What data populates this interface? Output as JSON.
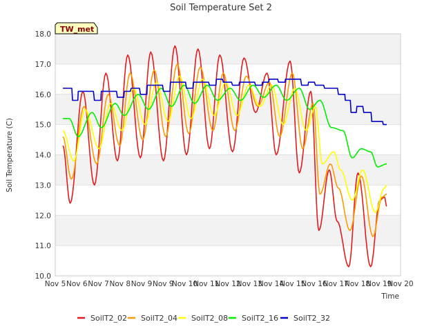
{
  "chart_data": {
    "type": "line",
    "title": "Soil Temperature Set 2",
    "xlabel": "Time",
    "ylabel": "Soil Temperature (C)",
    "badge": "TW_met",
    "x_tick_labels": [
      "Nov 5",
      "Nov 6",
      "Nov 7",
      "Nov 8",
      "Nov 9",
      "Nov 9",
      "Nov 10",
      "Nov 11",
      "Nov 12",
      "Nov 13",
      "Nov 14",
      "Nov 15",
      "Nov 16",
      "Nov 17",
      "Nov 18",
      "Nov 19",
      "Nov 20"
    ],
    "xlim": [
      5,
      20
    ],
    "ylim": [
      10,
      18
    ],
    "y_ticks": [
      10,
      11,
      12,
      13,
      14,
      15,
      16,
      17,
      18
    ],
    "y_tick_labels": [
      "10.0",
      "11.0",
      "12.0",
      "13.0",
      "14.0",
      "15.0",
      "16.0",
      "17.0",
      "18.0"
    ],
    "grid": true,
    "legend_position": "bottom",
    "series": [
      {
        "name": "SoilT2_02",
        "color": "#e31a1c",
        "x": [
          5.33,
          5.65,
          6.2,
          6.7,
          7.2,
          7.7,
          8.15,
          8.7,
          9.15,
          9.7,
          10.2,
          10.7,
          11.2,
          11.7,
          12.15,
          12.7,
          13.2,
          13.7,
          14.2,
          14.6,
          15.2,
          15.6,
          16.1,
          16.45,
          16.9,
          17.25,
          17.75,
          18.15,
          18.7,
          19.1,
          19.3,
          19.4
        ],
        "y": [
          14.3,
          12.4,
          16.1,
          13.0,
          16.7,
          13.8,
          17.3,
          13.9,
          17.4,
          13.8,
          17.6,
          14.0,
          17.5,
          14.2,
          17.3,
          14.1,
          17.2,
          15.4,
          16.7,
          14.0,
          17.1,
          13.4,
          16.1,
          11.5,
          13.5,
          11.8,
          10.3,
          13.4,
          10.3,
          12.5,
          12.6,
          12.3
        ]
      },
      {
        "name": "SoilT2_04",
        "color": "#ff9900",
        "x": [
          5.33,
          5.7,
          6.25,
          6.8,
          7.3,
          7.8,
          8.25,
          8.8,
          9.3,
          9.8,
          10.3,
          10.8,
          11.3,
          11.85,
          12.3,
          12.8,
          13.3,
          13.8,
          14.3,
          14.75,
          15.3,
          15.75,
          16.2,
          16.5,
          16.95,
          17.3,
          17.8,
          18.3,
          18.8,
          19.2,
          19.4
        ],
        "y": [
          14.6,
          13.2,
          15.6,
          13.7,
          16.0,
          14.3,
          16.7,
          14.5,
          16.8,
          14.6,
          17.0,
          14.7,
          16.9,
          14.8,
          16.7,
          14.8,
          16.6,
          15.6,
          16.4,
          14.6,
          16.7,
          14.2,
          15.7,
          12.7,
          13.7,
          12.9,
          11.5,
          13.3,
          11.3,
          12.6,
          12.7
        ]
      },
      {
        "name": "SoilT2_08",
        "color": "#ffff00",
        "x": [
          5.33,
          5.8,
          6.3,
          6.9,
          7.4,
          7.9,
          8.4,
          8.9,
          9.4,
          9.9,
          10.4,
          10.9,
          11.4,
          11.9,
          12.4,
          12.9,
          13.4,
          13.9,
          14.4,
          14.9,
          15.4,
          15.9,
          16.3,
          16.6,
          17.1,
          17.4,
          17.9,
          18.35,
          18.9,
          19.3,
          19.4
        ],
        "y": [
          14.8,
          13.8,
          15.5,
          14.2,
          15.7,
          14.8,
          16.2,
          15.0,
          16.4,
          15.1,
          16.6,
          15.2,
          16.5,
          15.3,
          16.4,
          15.3,
          16.3,
          15.6,
          16.3,
          15.0,
          16.2,
          14.8,
          15.6,
          13.7,
          14.1,
          13.5,
          12.5,
          13.5,
          12.1,
          12.9,
          13.0
        ]
      },
      {
        "name": "SoilT2_16",
        "color": "#00ee00",
        "x": [
          5.33,
          5.6,
          6.0,
          6.6,
          7.0,
          7.6,
          8.0,
          8.6,
          9.05,
          9.6,
          10.05,
          10.6,
          11.05,
          11.6,
          12.05,
          12.6,
          13.05,
          13.6,
          14.05,
          14.6,
          15.05,
          15.6,
          16.05,
          16.5,
          17.0,
          17.5,
          17.9,
          18.3,
          18.7,
          19.0,
          19.4
        ],
        "y": [
          15.2,
          15.2,
          14.6,
          15.4,
          14.9,
          15.7,
          15.3,
          16.0,
          15.5,
          16.2,
          15.6,
          16.3,
          15.7,
          16.3,
          15.8,
          16.2,
          15.8,
          16.3,
          15.9,
          16.3,
          15.8,
          16.2,
          15.5,
          15.8,
          14.9,
          14.8,
          13.9,
          14.2,
          14.1,
          13.6,
          13.7
        ]
      },
      {
        "name": "SoilT2_32",
        "color": "#0000cc",
        "x": [
          5.33,
          5.6,
          5.9,
          6.1,
          6.5,
          6.9,
          7.1,
          7.5,
          7.9,
          8.1,
          8.5,
          8.9,
          9.1,
          9.5,
          9.9,
          10.1,
          10.5,
          10.9,
          11.1,
          11.5,
          11.9,
          12.1,
          12.5,
          12.9,
          13.1,
          13.5,
          13.9,
          14.1,
          14.5,
          14.9,
          15.1,
          15.5,
          15.9,
          16.1,
          16.5,
          16.9,
          17.1,
          17.5,
          17.7,
          18.0,
          18.2,
          18.6,
          18.9,
          19.1,
          19.4
        ],
        "y": [
          16.2,
          16.2,
          15.8,
          16.1,
          16.1,
          15.8,
          16.1,
          16.1,
          15.9,
          16.1,
          16.2,
          16.0,
          16.3,
          16.3,
          16.1,
          16.4,
          16.4,
          16.2,
          16.4,
          16.4,
          16.3,
          16.5,
          16.4,
          16.3,
          16.4,
          16.4,
          16.3,
          16.4,
          16.5,
          16.4,
          16.5,
          16.5,
          16.3,
          16.4,
          16.3,
          16.2,
          16.2,
          16.0,
          15.8,
          15.4,
          15.6,
          15.4,
          15.1,
          15.1,
          15.0
        ]
      }
    ]
  }
}
